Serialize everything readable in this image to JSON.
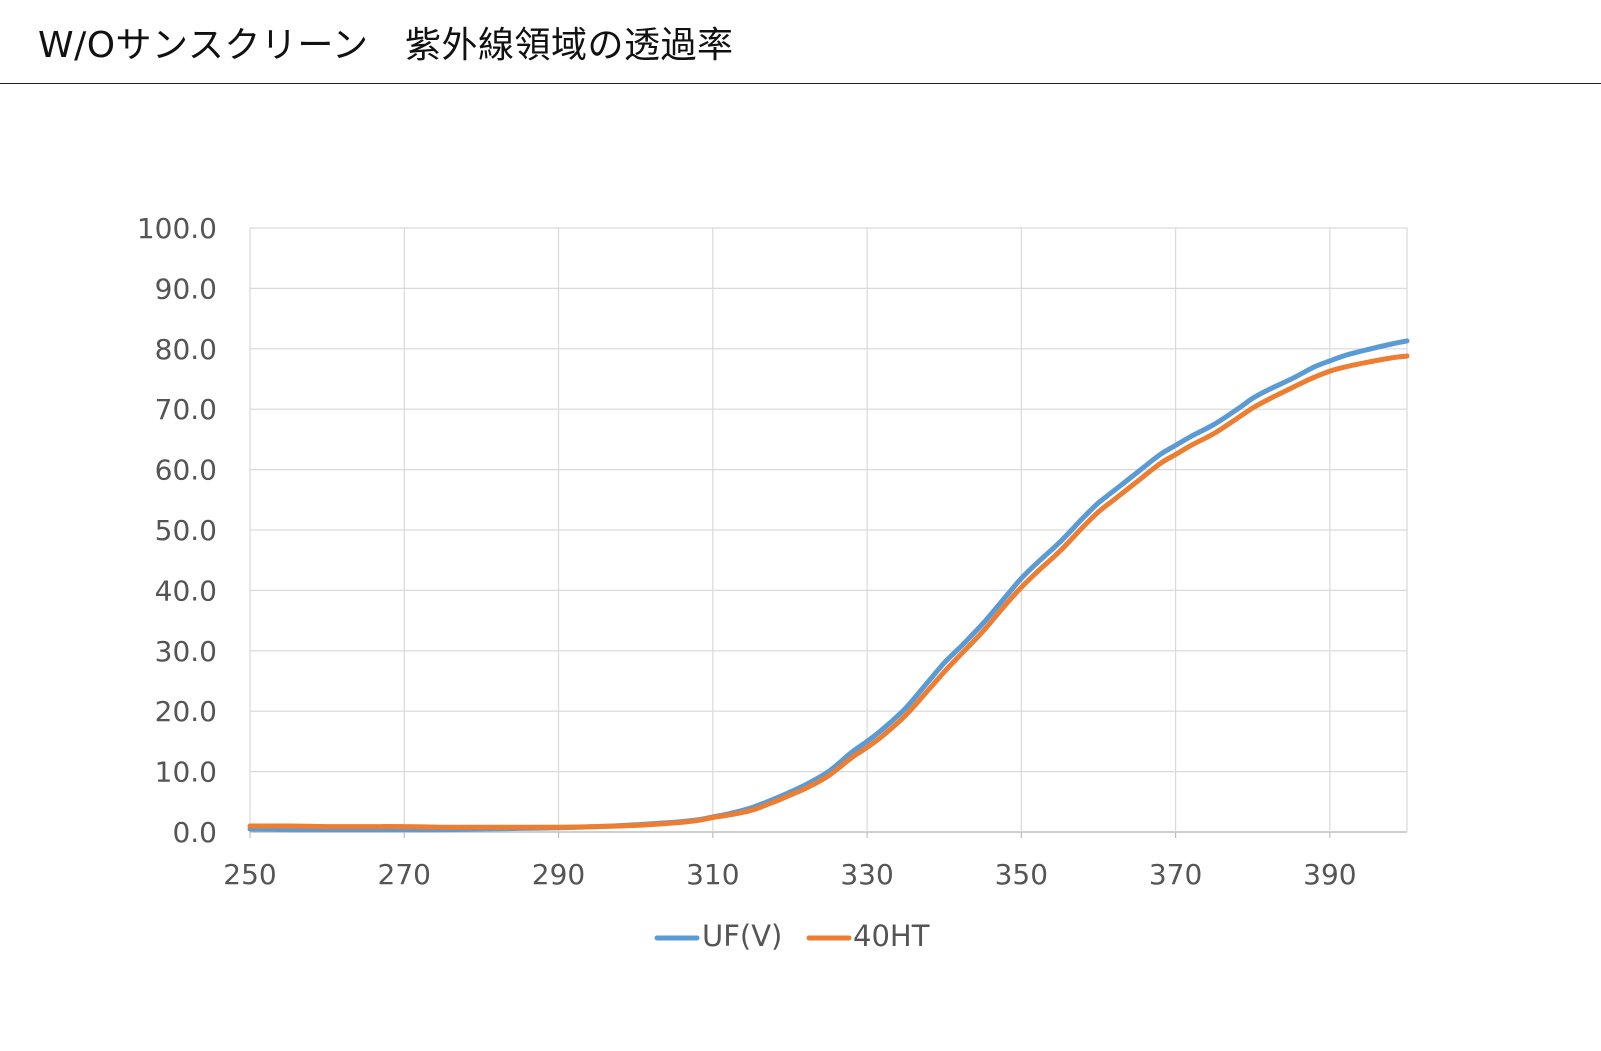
{
  "header": {
    "title": "W/Oサンスクリーン　紫外線領域の透過率"
  },
  "chart_data": {
    "type": "line",
    "title": "",
    "xlabel": "",
    "ylabel": "",
    "xlim": [
      250,
      400
    ],
    "ylim": [
      0,
      100
    ],
    "x_ticks": [
      "250",
      "270",
      "290",
      "310",
      "330",
      "350",
      "370",
      "390"
    ],
    "y_ticks": [
      "0.0",
      "10.0",
      "20.0",
      "30.0",
      "40.0",
      "50.0",
      "60.0",
      "70.0",
      "80.0",
      "90.0",
      "100.0"
    ],
    "grid": true,
    "legend_position": "bottom",
    "x": [
      250,
      255,
      260,
      265,
      270,
      275,
      280,
      285,
      290,
      295,
      300,
      305,
      308,
      310,
      312,
      315,
      318,
      320,
      322,
      325,
      328,
      330,
      332,
      335,
      338,
      340,
      342,
      345,
      348,
      350,
      352,
      355,
      358,
      360,
      362,
      365,
      368,
      370,
      372,
      375,
      378,
      380,
      382,
      385,
      388,
      390,
      392,
      395,
      398,
      400
    ],
    "series": [
      {
        "name": "UF(V)",
        "color": "#5B9BD5",
        "values": [
          0.5,
          0.4,
          0.4,
          0.4,
          0.4,
          0.4,
          0.5,
          0.6,
          0.7,
          0.9,
          1.2,
          1.6,
          2.0,
          2.5,
          3.0,
          4.0,
          5.5,
          6.6,
          7.8,
          10.0,
          13.2,
          15.0,
          17.0,
          20.5,
          25.0,
          28.0,
          30.5,
          34.5,
          39.0,
          42.0,
          44.5,
          48.0,
          52.0,
          54.5,
          56.5,
          59.5,
          62.5,
          64.0,
          65.5,
          67.5,
          70.0,
          71.8,
          73.2,
          75.0,
          77.0,
          78.0,
          78.9,
          79.9,
          80.8,
          81.3
        ]
      },
      {
        "name": "40HT",
        "color": "#ED7D31",
        "values": [
          1.0,
          1.0,
          0.9,
          0.9,
          0.9,
          0.8,
          0.8,
          0.8,
          0.8,
          0.9,
          1.1,
          1.5,
          1.9,
          2.4,
          2.8,
          3.6,
          5.0,
          6.1,
          7.2,
          9.3,
          12.3,
          14.0,
          15.9,
          19.3,
          23.6,
          26.5,
          29.2,
          33.2,
          37.7,
          40.5,
          43.0,
          46.5,
          50.5,
          53.0,
          55.0,
          58.0,
          61.0,
          62.5,
          64.0,
          66.0,
          68.5,
          70.2,
          71.6,
          73.5,
          75.3,
          76.3,
          77.0,
          77.8,
          78.5,
          78.8
        ]
      }
    ]
  }
}
